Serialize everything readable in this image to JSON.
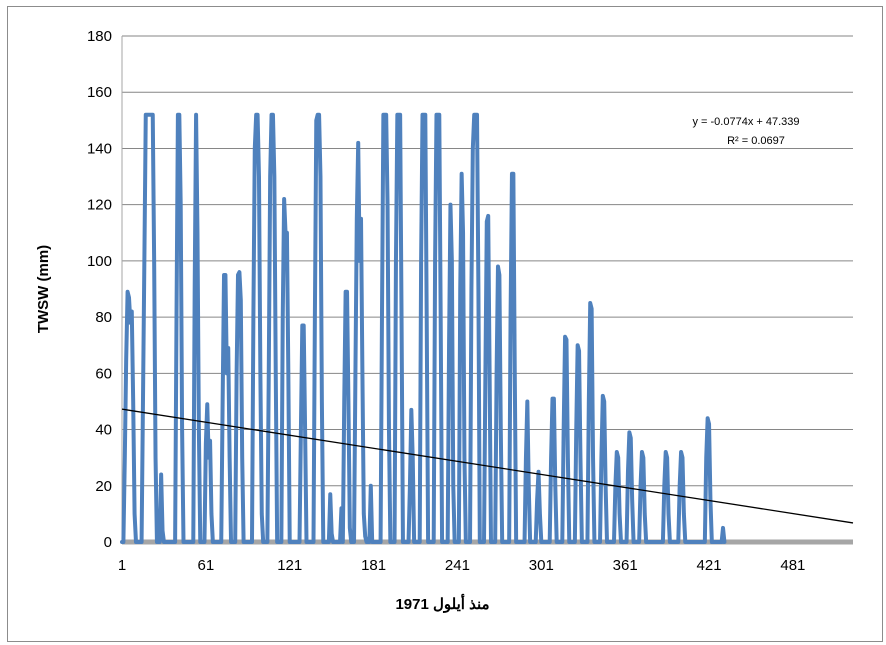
{
  "chart_data": {
    "type": "line",
    "title": "",
    "xlabel": "منذ أيلول 1971",
    "ylabel": "TWSW (mm)",
    "xlim": [
      1,
      524
    ],
    "ylim": [
      0,
      180
    ],
    "x_ticks": [
      1,
      61,
      121,
      181,
      241,
      301,
      361,
      421,
      481
    ],
    "y_ticks": [
      0,
      20,
      40,
      60,
      80,
      100,
      120,
      140,
      160,
      180
    ],
    "grid": "horizontal",
    "legend": "none",
    "colors": {
      "series": "#4f81bd",
      "trendline": "#000000",
      "grid": "#868686",
      "axis": "#a6a6a6"
    },
    "series": [
      {
        "points": [
          [
            1,
            0
          ],
          [
            2,
            0
          ],
          [
            3,
            30
          ],
          [
            4,
            65
          ],
          [
            5,
            89
          ],
          [
            6,
            87
          ],
          [
            7,
            78
          ],
          [
            8,
            82
          ],
          [
            9,
            50
          ],
          [
            10,
            10
          ],
          [
            11,
            0
          ],
          [
            12,
            0
          ],
          [
            15,
            0
          ],
          [
            16,
            50
          ],
          [
            17,
            100
          ],
          [
            18,
            152
          ],
          [
            19,
            152
          ],
          [
            20,
            152
          ],
          [
            21,
            152
          ],
          [
            22,
            152
          ],
          [
            23,
            152
          ],
          [
            24,
            100
          ],
          [
            25,
            30
          ],
          [
            26,
            0
          ],
          [
            28,
            0
          ],
          [
            29,
            24
          ],
          [
            30,
            4
          ],
          [
            31,
            0
          ],
          [
            39,
            0
          ],
          [
            40,
            80
          ],
          [
            41,
            152
          ],
          [
            42,
            152
          ],
          [
            43,
            120
          ],
          [
            44,
            40
          ],
          [
            45,
            0
          ],
          [
            52,
            0
          ],
          [
            53,
            90
          ],
          [
            54,
            152
          ],
          [
            55,
            110
          ],
          [
            56,
            40
          ],
          [
            57,
            0
          ],
          [
            60,
            0
          ],
          [
            61,
            35
          ],
          [
            62,
            49
          ],
          [
            63,
            30
          ],
          [
            64,
            36
          ],
          [
            65,
            10
          ],
          [
            66,
            0
          ],
          [
            72,
            0
          ],
          [
            73,
            50
          ],
          [
            74,
            95
          ],
          [
            75,
            95
          ],
          [
            76,
            60
          ],
          [
            77,
            69
          ],
          [
            78,
            30
          ],
          [
            79,
            0
          ],
          [
            82,
            0
          ],
          [
            83,
            60
          ],
          [
            84,
            95
          ],
          [
            85,
            96
          ],
          [
            86,
            86
          ],
          [
            87,
            30
          ],
          [
            88,
            0
          ],
          [
            94,
            0
          ],
          [
            95,
            80
          ],
          [
            96,
            140
          ],
          [
            97,
            152
          ],
          [
            98,
            152
          ],
          [
            99,
            130
          ],
          [
            100,
            60
          ],
          [
            101,
            10
          ],
          [
            102,
            0
          ],
          [
            105,
            0
          ],
          [
            106,
            60
          ],
          [
            107,
            130
          ],
          [
            108,
            152
          ],
          [
            109,
            152
          ],
          [
            110,
            130
          ],
          [
            111,
            60
          ],
          [
            112,
            0
          ],
          [
            115,
            0
          ],
          [
            116,
            80
          ],
          [
            117,
            122
          ],
          [
            118,
            110
          ],
          [
            119,
            110
          ],
          [
            120,
            60
          ],
          [
            121,
            0
          ],
          [
            128,
            0
          ],
          [
            129,
            40
          ],
          [
            130,
            77
          ],
          [
            131,
            77
          ],
          [
            132,
            40
          ],
          [
            133,
            0
          ],
          [
            138,
            0
          ],
          [
            139,
            80
          ],
          [
            140,
            150
          ],
          [
            141,
            152
          ],
          [
            142,
            152
          ],
          [
            143,
            130
          ],
          [
            144,
            50
          ],
          [
            145,
            0
          ],
          [
            149,
            0
          ],
          [
            150,
            17
          ],
          [
            151,
            3
          ],
          [
            152,
            0
          ],
          [
            157,
            0
          ],
          [
            158,
            12
          ],
          [
            159,
            0
          ],
          [
            160,
            50
          ],
          [
            161,
            89
          ],
          [
            162,
            89
          ],
          [
            163,
            50
          ],
          [
            164,
            5
          ],
          [
            165,
            0
          ],
          [
            167,
            0
          ],
          [
            168,
            60
          ],
          [
            169,
            115
          ],
          [
            170,
            142
          ],
          [
            171,
            100
          ],
          [
            172,
            115
          ],
          [
            173,
            60
          ],
          [
            174,
            10
          ],
          [
            175,
            2
          ],
          [
            176,
            0
          ],
          [
            178,
            0
          ],
          [
            179,
            20
          ],
          [
            180,
            0
          ],
          [
            186,
            0
          ],
          [
            187,
            80
          ],
          [
            188,
            152
          ],
          [
            189,
            152
          ],
          [
            190,
            152
          ],
          [
            191,
            120
          ],
          [
            192,
            40
          ],
          [
            193,
            0
          ],
          [
            196,
            0
          ],
          [
            197,
            100
          ],
          [
            198,
            152
          ],
          [
            199,
            152
          ],
          [
            200,
            152
          ],
          [
            201,
            80
          ],
          [
            202,
            0
          ],
          [
            206,
            0
          ],
          [
            207,
            20
          ],
          [
            208,
            47
          ],
          [
            209,
            30
          ],
          [
            210,
            0
          ],
          [
            214,
            0
          ],
          [
            215,
            100
          ],
          [
            216,
            152
          ],
          [
            217,
            152
          ],
          [
            218,
            152
          ],
          [
            219,
            80
          ],
          [
            220,
            0
          ],
          [
            224,
            0
          ],
          [
            225,
            100
          ],
          [
            226,
            152
          ],
          [
            227,
            152
          ],
          [
            228,
            152
          ],
          [
            229,
            80
          ],
          [
            230,
            0
          ],
          [
            234,
            0
          ],
          [
            235,
            70
          ],
          [
            236,
            120
          ],
          [
            237,
            100
          ],
          [
            238,
            20
          ],
          [
            239,
            0
          ],
          [
            242,
            0
          ],
          [
            243,
            90
          ],
          [
            244,
            131
          ],
          [
            245,
            110
          ],
          [
            246,
            30
          ],
          [
            247,
            0
          ],
          [
            250,
            0
          ],
          [
            251,
            90
          ],
          [
            252,
            140
          ],
          [
            253,
            152
          ],
          [
            254,
            152
          ],
          [
            255,
            152
          ],
          [
            256,
            90
          ],
          [
            257,
            0
          ],
          [
            260,
            0
          ],
          [
            261,
            60
          ],
          [
            262,
            114
          ],
          [
            263,
            116
          ],
          [
            264,
            60
          ],
          [
            265,
            0
          ],
          [
            268,
            0
          ],
          [
            269,
            60
          ],
          [
            270,
            98
          ],
          [
            271,
            95
          ],
          [
            272,
            40
          ],
          [
            273,
            0
          ],
          [
            278,
            0
          ],
          [
            279,
            80
          ],
          [
            280,
            131
          ],
          [
            281,
            131
          ],
          [
            282,
            60
          ],
          [
            283,
            0
          ],
          [
            289,
            0
          ],
          [
            290,
            30
          ],
          [
            291,
            50
          ],
          [
            292,
            20
          ],
          [
            293,
            0
          ],
          [
            297,
            0
          ],
          [
            298,
            15
          ],
          [
            299,
            25
          ],
          [
            300,
            10
          ],
          [
            301,
            0
          ],
          [
            307,
            0
          ],
          [
            308,
            30
          ],
          [
            309,
            51
          ],
          [
            310,
            51
          ],
          [
            311,
            20
          ],
          [
            312,
            0
          ],
          [
            316,
            0
          ],
          [
            317,
            40
          ],
          [
            318,
            73
          ],
          [
            319,
            72
          ],
          [
            320,
            30
          ],
          [
            321,
            0
          ],
          [
            325,
            0
          ],
          [
            326,
            40
          ],
          [
            327,
            70
          ],
          [
            328,
            68
          ],
          [
            329,
            30
          ],
          [
            330,
            0
          ],
          [
            334,
            0
          ],
          [
            335,
            50
          ],
          [
            336,
            85
          ],
          [
            337,
            83
          ],
          [
            338,
            30
          ],
          [
            339,
            0
          ],
          [
            343,
            0
          ],
          [
            344,
            30
          ],
          [
            345,
            52
          ],
          [
            346,
            50
          ],
          [
            347,
            20
          ],
          [
            348,
            0
          ],
          [
            353,
            0
          ],
          [
            354,
            20
          ],
          [
            355,
            32
          ],
          [
            356,
            30
          ],
          [
            357,
            10
          ],
          [
            358,
            0
          ],
          [
            362,
            0
          ],
          [
            363,
            25
          ],
          [
            364,
            39
          ],
          [
            365,
            37
          ],
          [
            366,
            15
          ],
          [
            367,
            0
          ],
          [
            371,
            0
          ],
          [
            372,
            20
          ],
          [
            373,
            32
          ],
          [
            374,
            30
          ],
          [
            375,
            10
          ],
          [
            376,
            0
          ],
          [
            388,
            0
          ],
          [
            389,
            20
          ],
          [
            390,
            32
          ],
          [
            391,
            30
          ],
          [
            392,
            10
          ],
          [
            393,
            0
          ],
          [
            399,
            0
          ],
          [
            400,
            20
          ],
          [
            401,
            32
          ],
          [
            402,
            30
          ],
          [
            403,
            10
          ],
          [
            404,
            0
          ],
          [
            418,
            0
          ],
          [
            419,
            30
          ],
          [
            420,
            44
          ],
          [
            421,
            42
          ],
          [
            422,
            15
          ],
          [
            423,
            0
          ],
          [
            430,
            0
          ],
          [
            431,
            5
          ],
          [
            432,
            0
          ]
        ]
      }
    ],
    "trendline": {
      "slope": -0.0774,
      "intercept": 47.339,
      "x_range": [
        1,
        524
      ]
    },
    "annotations": [
      {
        "text": "y = -0.0774x + 47.339"
      },
      {
        "text": "R² = 0.0697"
      }
    ]
  }
}
